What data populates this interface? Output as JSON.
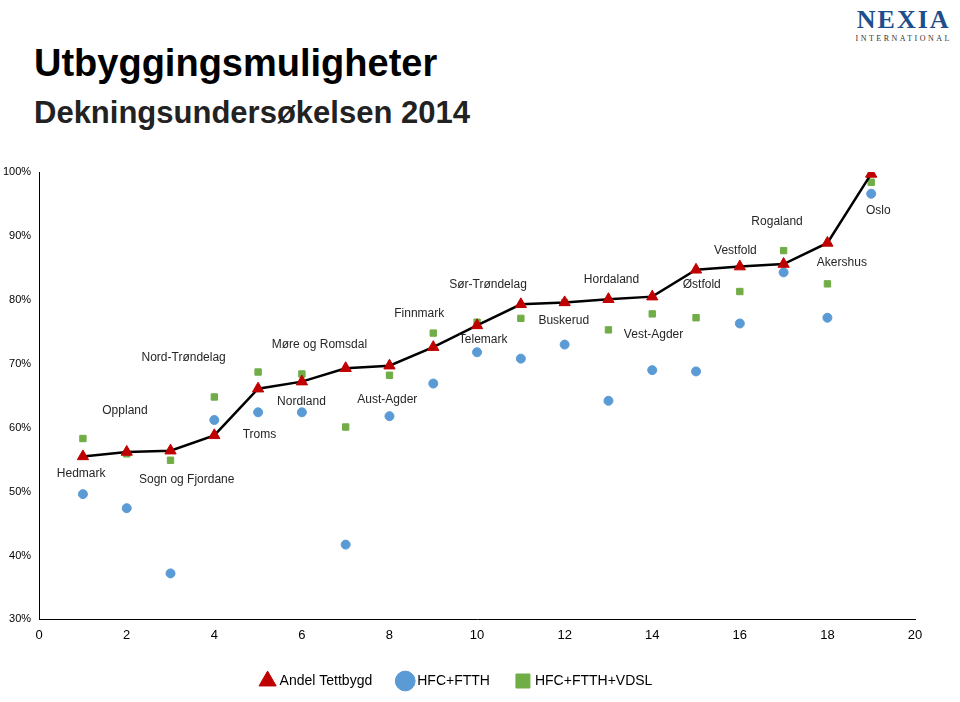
{
  "chart_data": {
    "type": "scatter",
    "title": "Utbyggingsmuligheter",
    "subtitle": "Dekningsundersøkelsen 2014",
    "logo": {
      "text": "NEXIA",
      "subtext": "INTERNATIONAL"
    },
    "x": [
      1,
      2,
      3,
      4,
      5,
      6,
      7,
      8,
      9,
      10,
      11,
      12,
      13,
      14,
      15,
      16,
      17,
      18,
      19
    ],
    "series": [
      {
        "name": "HFC+FTTH",
        "color": "#5b9bd5",
        "marker": "circle",
        "values": [
          49.6,
          47.4,
          37.2,
          61.2,
          62.4,
          62.4,
          41.7,
          61.8,
          66.9,
          71.8,
          70.8,
          73.0,
          64.2,
          69.0,
          68.8,
          76.3,
          84.3,
          77.2,
          96.6
        ]
      },
      {
        "name": "HFC+FTTH+VDSL",
        "color": "#70ad47",
        "marker": "square",
        "values": [
          58.3,
          55.9,
          54.9,
          64.8,
          68.7,
          68.4,
          60.1,
          68.2,
          74.8,
          76.5,
          77.1,
          79.6,
          75.3,
          77.8,
          77.2,
          81.3,
          87.7,
          82.5,
          98.4
        ]
      },
      {
        "name": "Andel Tettbygd",
        "color": "#c00000",
        "marker": "triangle",
        "type": "line",
        "line_style": "solid",
        "values": [
          55.5,
          56.2,
          56.4,
          58.8,
          66.1,
          67.2,
          69.3,
          69.7,
          72.6,
          76.0,
          79.3,
          79.6,
          80.1,
          80.5,
          84.7,
          85.2,
          85.6,
          88.9,
          99.7
        ]
      }
    ],
    "annotations": [
      {
        "text": "Hedmark",
        "x": 0.96,
        "y": 52.8
      },
      {
        "text": "Oppland",
        "x": 1.96,
        "y": 62.7
      },
      {
        "text": "Sogn og Fjordane",
        "x": 3.37,
        "y": 51.9
      },
      {
        "text": "Nord-Trøndelag",
        "x": 3.3,
        "y": 70.9
      },
      {
        "text": "Troms",
        "x": 5.03,
        "y": 58.9
      },
      {
        "text": "Møre og Romsdal",
        "x": 6.4,
        "y": 73.0
      },
      {
        "text": "Nordland",
        "x": 5.99,
        "y": 64.0
      },
      {
        "text": "Aust-Agder",
        "x": 7.95,
        "y": 64.3
      },
      {
        "text": "Finnmark",
        "x": 8.68,
        "y": 77.8
      },
      {
        "text": "Telemark",
        "x": 10.14,
        "y": 73.8
      },
      {
        "text": "Sør-Trøndelag",
        "x": 10.25,
        "y": 82.3
      },
      {
        "text": "Buskerud",
        "x": 11.98,
        "y": 76.8
      },
      {
        "text": "Hordaland",
        "x": 13.07,
        "y": 83.1
      },
      {
        "text": "Vest-Agder",
        "x": 14.03,
        "y": 74.6
      },
      {
        "text": "Østfold",
        "x": 15.13,
        "y": 82.3
      },
      {
        "text": "Vestfold",
        "x": 15.9,
        "y": 87.7
      },
      {
        "text": "Rogaland",
        "x": 16.85,
        "y": 92.2
      },
      {
        "text": "Akershus",
        "x": 18.33,
        "y": 85.8
      },
      {
        "text": "Oslo",
        "x": 19.16,
        "y": 94.0
      }
    ],
    "xlim": [
      0,
      20
    ],
    "xticks": [
      0,
      2,
      4,
      6,
      8,
      10,
      12,
      14,
      16,
      18,
      20
    ],
    "ylim": [
      30,
      100
    ],
    "yticks": [
      {
        "value": 30,
        "label": "30%"
      },
      {
        "value": 40,
        "label": "40%"
      },
      {
        "value": 50,
        "label": "50%"
      },
      {
        "value": 60,
        "label": "60%"
      },
      {
        "value": 70,
        "label": "70%"
      },
      {
        "value": 80,
        "label": "80%"
      },
      {
        "value": 90,
        "label": "90%"
      },
      {
        "value": 100,
        "label": "100%"
      }
    ],
    "grid": false,
    "legend": "bottom"
  }
}
